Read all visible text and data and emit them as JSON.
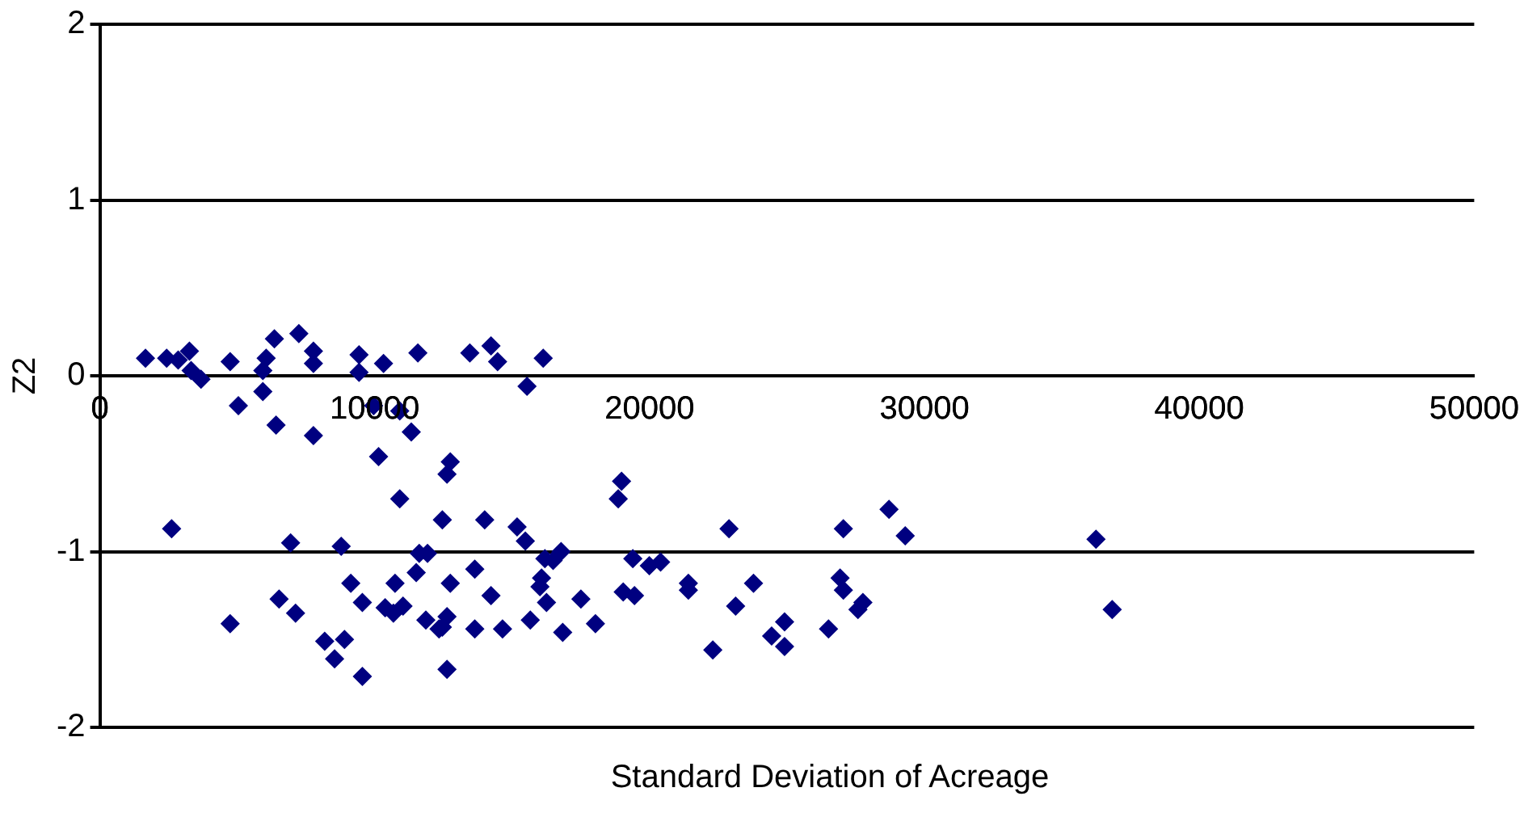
{
  "chart_data": {
    "type": "scatter",
    "xlabel": "Standard Deviation of Acreage",
    "ylabel": "Z2",
    "xlim": [
      0,
      50000
    ],
    "xticks": [
      0,
      10000,
      20000,
      30000,
      40000,
      50000
    ],
    "ylim": [
      -2,
      2
    ],
    "yticks": [
      -2,
      -1,
      0,
      1,
      2
    ],
    "grid": "y",
    "legend": false,
    "marker": "diamond",
    "series": [
      {
        "color": "#000080",
        "x": [
          1660,
          2430,
          2850,
          3260,
          3320,
          3680,
          4740,
          5040,
          5930,
          6050,
          5930,
          6350,
          7240,
          7770,
          7770,
          6410,
          9430,
          9430,
          10320,
          11570,
          9960,
          10910,
          11330,
          7770,
          10140,
          13460,
          14230,
          14470,
          16130,
          15540,
          2610,
          6940,
          8780,
          10910,
          12460,
          11620,
          11920,
          11510,
          10740,
          9130,
          9550,
          6520,
          7120,
          4740,
          10380,
          10680,
          11030,
          11860,
          12340,
          12630,
          8180,
          8900,
          8540,
          9550,
          12630,
          12630,
          12750,
          12750,
          18980,
          18860,
          14000,
          15180,
          15480,
          16190,
          16780,
          16490,
          16070,
          16010,
          13640,
          14230,
          16250,
          17500,
          12460,
          13640,
          14650,
          15660,
          16840,
          18030,
          19390,
          19990,
          20400,
          19040,
          19450,
          21410,
          21410,
          22890,
          23780,
          23130,
          22300,
          24440,
          24910,
          24910,
          27050,
          28710,
          29300,
          36240,
          26930,
          27050,
          27760,
          27580,
          36830,
          26510
        ],
        "values": [
          0.1,
          0.1,
          0.09,
          0.14,
          0.03,
          -0.02,
          0.08,
          -0.17,
          0.03,
          0.1,
          -0.09,
          0.21,
          0.24,
          0.14,
          0.07,
          -0.28,
          0.12,
          0.02,
          0.07,
          0.13,
          -0.17,
          -0.2,
          -0.32,
          -0.34,
          -0.46,
          0.13,
          0.17,
          0.08,
          0.1,
          -0.06,
          -0.87,
          -0.95,
          -0.97,
          -0.7,
          -0.82,
          -1.01,
          -1.01,
          -1.12,
          -1.18,
          -1.18,
          -1.29,
          -1.27,
          -1.35,
          -1.41,
          -1.32,
          -1.35,
          -1.31,
          -1.39,
          -1.44,
          -1.37,
          -1.51,
          -1.5,
          -1.61,
          -1.71,
          -1.67,
          -0.56,
          -1.18,
          -0.49,
          -0.6,
          -0.7,
          -0.82,
          -0.86,
          -0.94,
          -1.04,
          -1.0,
          -1.05,
          -1.15,
          -1.2,
          -1.1,
          -1.25,
          -1.29,
          -1.27,
          -1.43,
          -1.44,
          -1.44,
          -1.39,
          -1.46,
          -1.41,
          -1.04,
          -1.08,
          -1.06,
          -1.23,
          -1.25,
          -1.18,
          -1.22,
          -0.87,
          -1.18,
          -1.31,
          -1.56,
          -1.48,
          -1.4,
          -1.54,
          -0.87,
          -0.76,
          -0.91,
          -0.93,
          -1.15,
          -1.22,
          -1.29,
          -1.33,
          -1.33,
          -1.44
        ]
      }
    ]
  }
}
